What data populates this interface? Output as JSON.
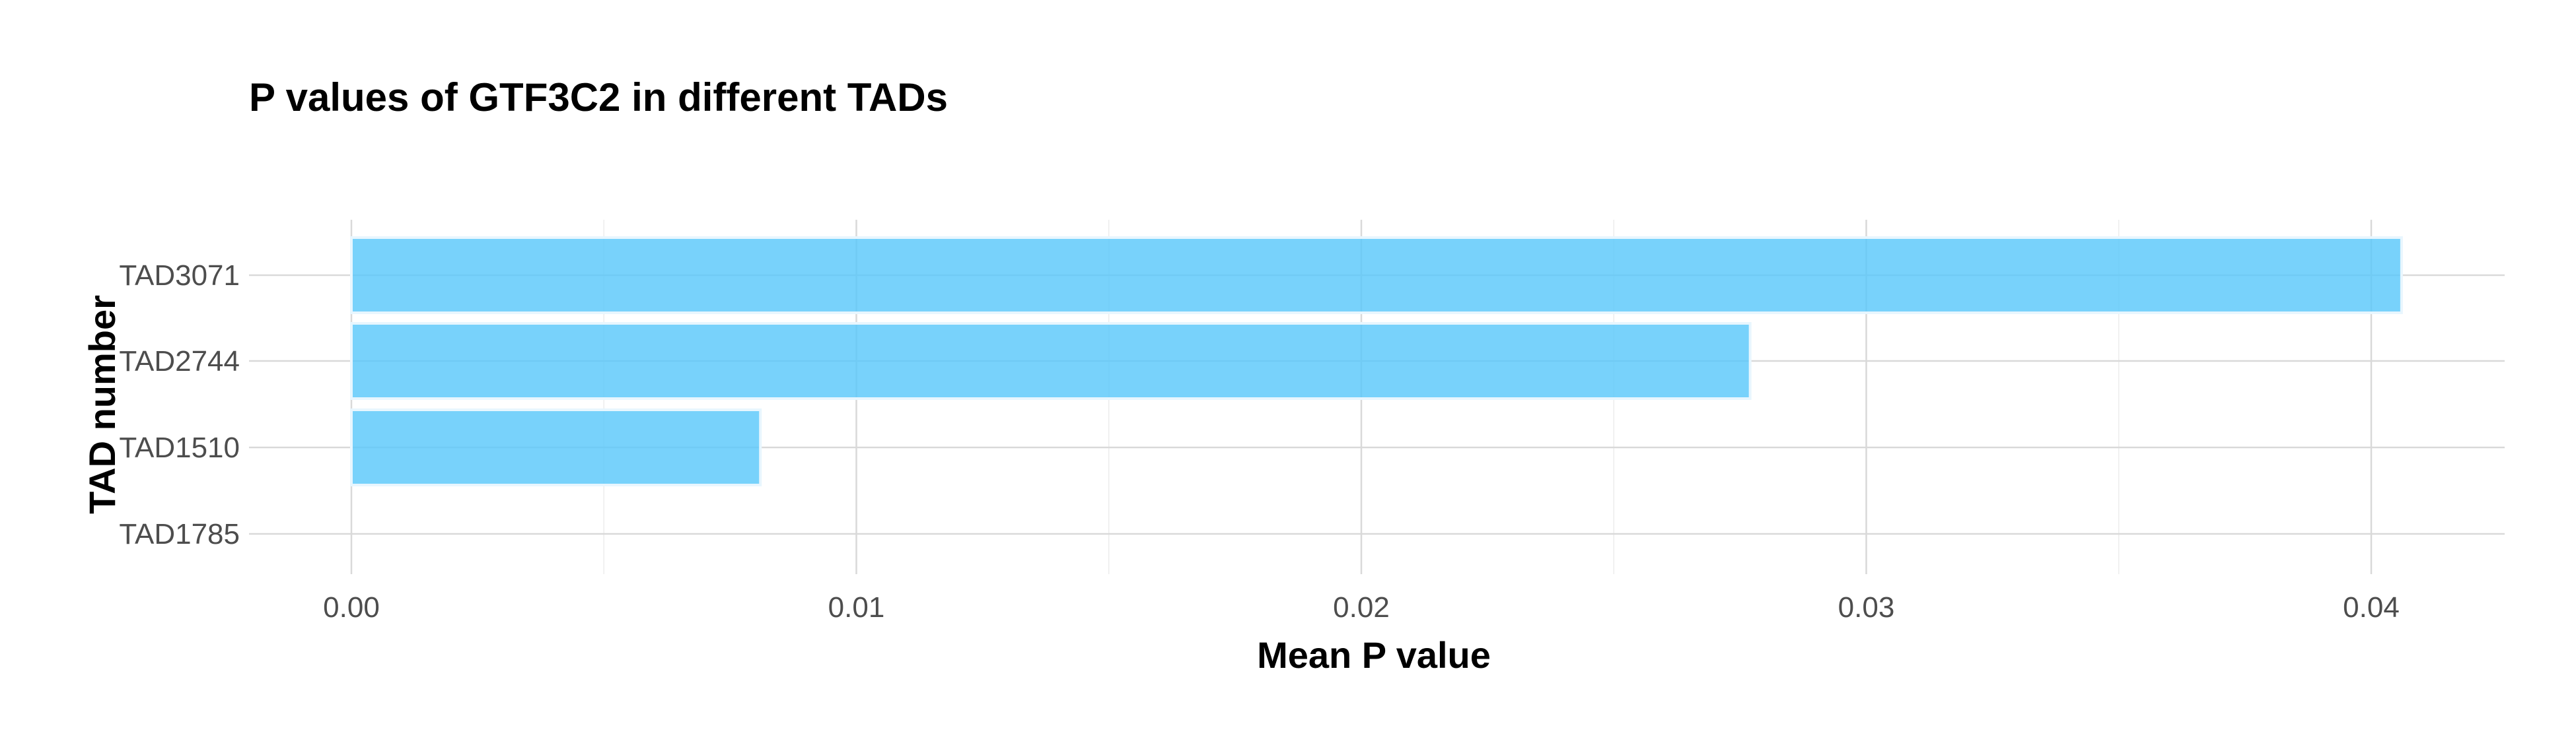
{
  "chart_data": {
    "type": "bar",
    "orientation": "horizontal",
    "title": "P values of GTF3C2 in different TADs",
    "xlabel": "Mean P value",
    "ylabel": "TAD number",
    "categories": [
      "TAD3071",
      "TAD2744",
      "TAD1510",
      "TAD1785"
    ],
    "values": [
      0.0406,
      0.0277,
      0.0081,
      0
    ],
    "xlim": [
      -0.0018,
      0.0427
    ],
    "xticks": [
      0.0,
      0.01,
      0.02,
      0.03,
      0.04
    ],
    "xtick_labels": [
      "0.00",
      "0.01",
      "0.02",
      "0.03",
      "0.04"
    ],
    "grid": true,
    "legend": "none",
    "bar_color": "#5ac8fa"
  }
}
